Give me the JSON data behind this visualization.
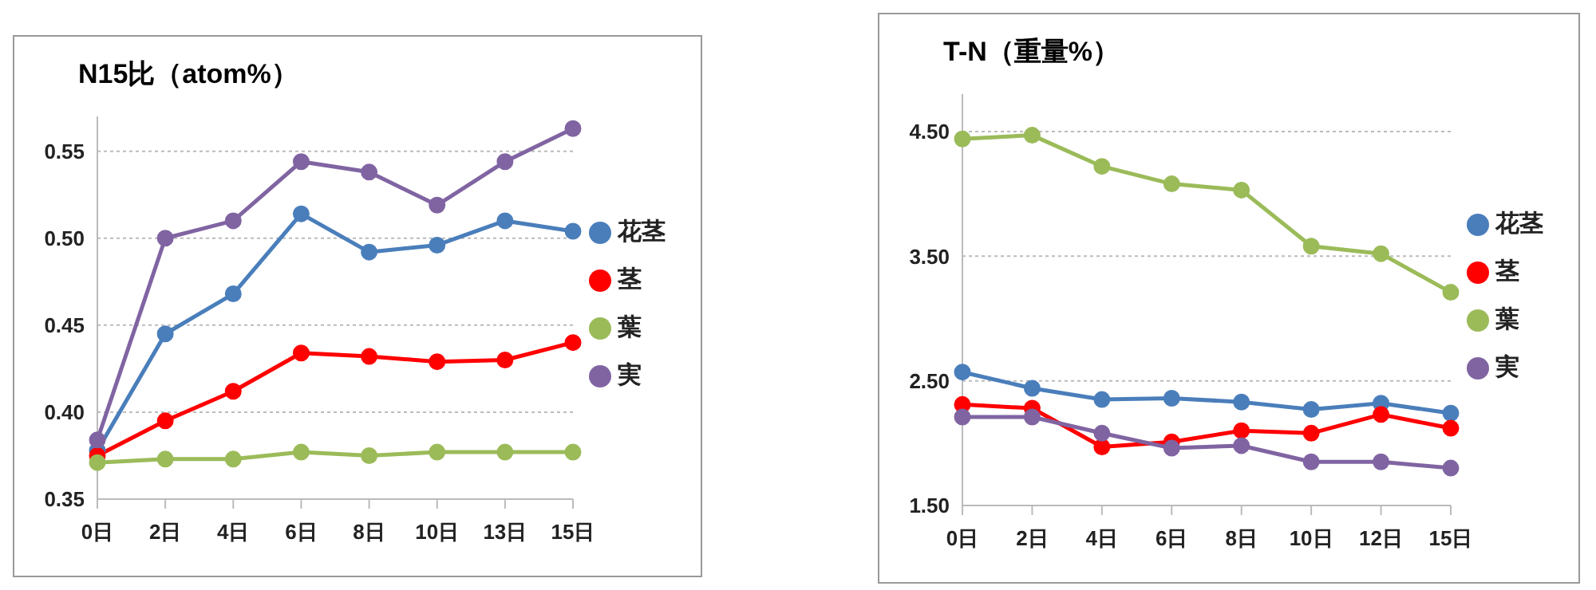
{
  "chart_data": [
    {
      "type": "line",
      "title": "N15比（atom%）",
      "categories": [
        "0日",
        "2日",
        "4日",
        "6日",
        "8日",
        "10日",
        "13日",
        "15日"
      ],
      "series": [
        {
          "name": "花茎",
          "color": "#4a7ebb",
          "values": [
            0.378,
            0.445,
            0.468,
            0.514,
            0.492,
            0.496,
            0.51,
            0.504
          ]
        },
        {
          "name": "茎",
          "color": "#ff0000",
          "values": [
            0.375,
            0.395,
            0.412,
            0.434,
            0.432,
            0.429,
            0.43,
            0.44
          ]
        },
        {
          "name": "葉",
          "color": "#9bbb59",
          "values": [
            0.371,
            0.373,
            0.373,
            0.377,
            0.375,
            0.377,
            0.377,
            0.377
          ]
        },
        {
          "name": "実",
          "color": "#8064a2",
          "values": [
            0.384,
            0.5,
            0.51,
            0.544,
            0.538,
            0.519,
            0.544,
            0.563
          ]
        }
      ],
      "ylim": [
        0.35,
        0.57
      ],
      "yticks": [
        0.35,
        {
          "value": 0.4,
          "label": "0.40"
        },
        0.45,
        {
          "value": 0.5,
          "label": "0.50"
        },
        0.55
      ],
      "grid": "y",
      "legend": "right",
      "marker": "circle",
      "line_style": "solid"
    },
    {
      "type": "line",
      "title": "T-N（重量%）",
      "categories": [
        "0日",
        "2日",
        "4日",
        "6日",
        "8日",
        "10日",
        "12日",
        "15日"
      ],
      "series": [
        {
          "name": "花茎",
          "color": "#4a7ebb",
          "values": [
            2.57,
            2.44,
            2.35,
            2.36,
            2.33,
            2.27,
            2.32,
            2.24
          ]
        },
        {
          "name": "茎",
          "color": "#ff0000",
          "values": [
            2.31,
            2.28,
            1.97,
            2.01,
            2.1,
            2.08,
            2.23,
            2.12
          ]
        },
        {
          "name": "葉",
          "color": "#9bbb59",
          "values": [
            4.44,
            4.47,
            4.22,
            4.08,
            4.03,
            3.58,
            3.52,
            3.21
          ]
        },
        {
          "name": "実",
          "color": "#8064a2",
          "values": [
            2.21,
            2.21,
            2.08,
            1.96,
            1.98,
            1.85,
            1.85,
            1.8
          ]
        }
      ],
      "ylim": [
        1.5,
        4.8
      ],
      "yticks": [
        {
          "value": 1.5,
          "label": "1.50"
        },
        {
          "value": 2.5,
          "label": "2.50"
        },
        {
          "value": 3.5,
          "label": "3.50"
        },
        {
          "value": 4.5,
          "label": "4.50"
        }
      ],
      "grid": "y",
      "legend": "right",
      "marker": "circle",
      "line_style": "solid"
    }
  ]
}
